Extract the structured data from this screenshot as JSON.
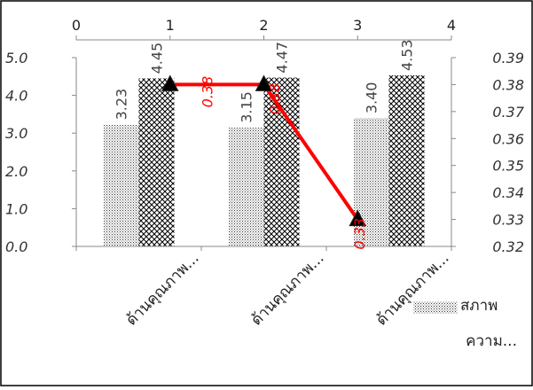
{
  "chart_data": {
    "type": "bar",
    "categories": [
      "ด้านคุณภาพ...",
      "ด้านคุณภาพ...",
      "ด้านคุณภาพ..."
    ],
    "series": [
      {
        "name": "สภาพ",
        "type": "bar",
        "axis": "left",
        "pattern": "dots",
        "values": [
          3.23,
          3.15,
          3.4
        ]
      },
      {
        "name": "ความ...",
        "type": "bar",
        "axis": "left",
        "pattern": "crosshatch",
        "values": [
          4.45,
          4.47,
          4.53
        ]
      },
      {
        "name": "",
        "type": "line",
        "axis": "right",
        "color": "#ff0000",
        "marker": "triangle",
        "x": [
          1,
          2,
          3
        ],
        "values": [
          0.38,
          0.38,
          0.33
        ]
      }
    ],
    "axes": {
      "left_y": {
        "min": 0.0,
        "max": 5.0,
        "ticks": [
          "0.0",
          "1.0",
          "2.0",
          "3.0",
          "4.0",
          "5.0"
        ]
      },
      "right_y": {
        "min": 0.32,
        "max": 0.39,
        "ticks": [
          "0.32",
          "0.33",
          "0.34",
          "0.35",
          "0.36",
          "0.37",
          "0.38",
          "0.39"
        ]
      },
      "top_x": {
        "min": 0,
        "max": 4,
        "ticks": [
          "0",
          "1",
          "2",
          "3",
          "4"
        ]
      }
    },
    "bar_labels": [
      [
        "3.23",
        "3.15",
        "3.40"
      ],
      [
        "4.45",
        "4.47",
        "4.53"
      ]
    ],
    "line_labels": [
      "0.38",
      "0.38",
      "0.33"
    ],
    "legend": {
      "position": "right",
      "entries": [
        "สภาพ",
        "ความ..."
      ]
    },
    "grid": false
  }
}
